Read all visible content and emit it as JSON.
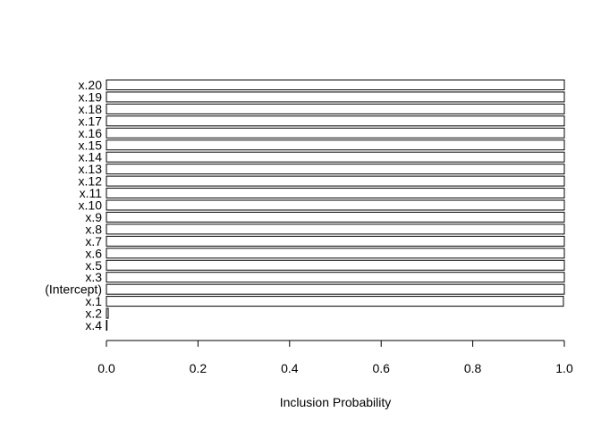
{
  "chart_data": {
    "type": "bar",
    "orientation": "horizontal",
    "title": "",
    "xlabel": "Inclusion Probability",
    "ylabel": "",
    "xlim": [
      0,
      1
    ],
    "xticks": [
      "0.0",
      "0.2",
      "0.4",
      "0.6",
      "0.8",
      "1.0"
    ],
    "grid": false,
    "categories": [
      "x.20",
      "x.19",
      "x.18",
      "x.17",
      "x.16",
      "x.15",
      "x.14",
      "x.13",
      "x.12",
      "x.11",
      "x.10",
      "x.9",
      "x.8",
      "x.7",
      "x.6",
      "x.5",
      "x.3",
      "(Intercept)",
      "x.1",
      "x.2",
      "x.4"
    ],
    "values": [
      1,
      1,
      1,
      1,
      1,
      1,
      1,
      1,
      1,
      1,
      1,
      1,
      1,
      1,
      1,
      1,
      1,
      1,
      0.998,
      0.004,
      0.001
    ],
    "colors": {
      "bar_fill": "#ffffff",
      "bar_stroke": "#000000"
    }
  }
}
